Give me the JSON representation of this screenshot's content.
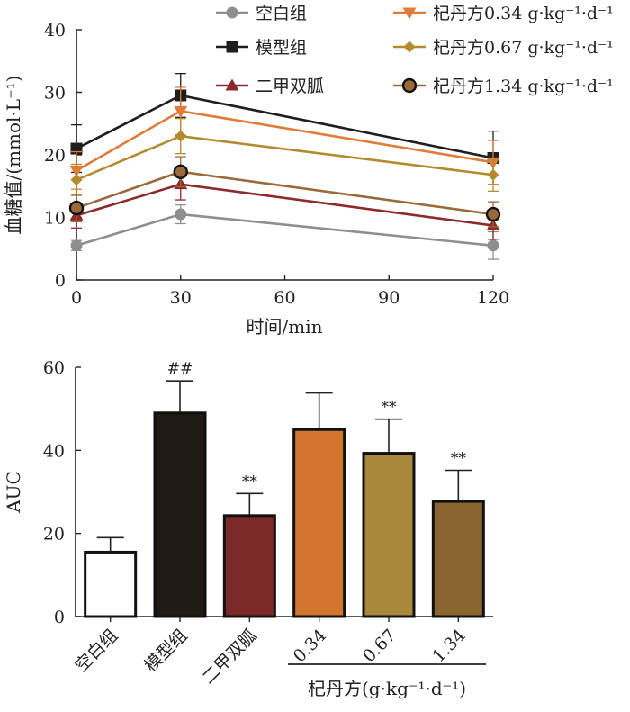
{
  "chart_data": [
    {
      "type": "line",
      "title": "",
      "xlabel": "时间/min",
      "ylabel": "血糖值/(mmol·L⁻¹)",
      "x": [
        0,
        30,
        120
      ],
      "xticks": [
        "0",
        "30",
        "60",
        "90",
        "120"
      ],
      "xlim": [
        0,
        120
      ],
      "yticks": [
        "0",
        "10",
        "20",
        "30",
        "40"
      ],
      "ylim": [
        0,
        40
      ],
      "legend_position": "top",
      "series": [
        {
          "name": "空白组",
          "color": "#8e8e8e",
          "marker": "circle",
          "values": [
            5.5,
            10.5,
            5.5
          ],
          "errors": [
            0.8,
            1.5,
            2.2
          ]
        },
        {
          "name": "模型组",
          "color": "#1e1e1e",
          "marker": "square",
          "values": [
            21.0,
            29.5,
            19.5
          ],
          "errors": [
            3.8,
            3.5,
            4.3
          ]
        },
        {
          "name": "二甲双胍",
          "color": "#8b2a2a",
          "marker": "triangle-up",
          "values": [
            10.3,
            15.3,
            8.7
          ],
          "errors": [
            2.0,
            2.5,
            2.2
          ]
        },
        {
          "name": "杞丹方0.34 g·kg⁻¹·d⁻¹",
          "color": "#e07b39",
          "marker": "triangle-down",
          "values": [
            17.5,
            27.0,
            18.8
          ],
          "errors": [
            3.0,
            3.8,
            3.5
          ]
        },
        {
          "name": "杞丹方0.67 g·kg⁻¹·d⁻¹",
          "color": "#b38b2e",
          "marker": "diamond",
          "values": [
            16.0,
            23.0,
            16.8
          ],
          "errors": [
            2.5,
            2.8,
            2.6
          ]
        },
        {
          "name": "杞丹方1.34 g·kg⁻¹·d⁻¹",
          "color": "#9a6a3a",
          "marker": "circle-dark",
          "values": [
            11.5,
            17.3,
            10.5
          ],
          "errors": [
            2.2,
            2.4,
            2.0
          ]
        }
      ]
    },
    {
      "type": "bar",
      "title": "",
      "xlabel": "杞丹方(g·kg⁻¹·d⁻¹)",
      "ylabel": "AUC",
      "ylim": [
        0,
        60
      ],
      "yticks": [
        "0",
        "20",
        "40",
        "60"
      ],
      "categories": [
        "空白组",
        "模型组",
        "二甲双胍",
        "0.34",
        "0.67",
        "1.34"
      ],
      "values": [
        15.5,
        49.0,
        24.3,
        45.0,
        39.3,
        27.7
      ],
      "errors": [
        3.5,
        7.7,
        5.3,
        8.8,
        8.2,
        7.5
      ],
      "colors": [
        "#ffffff",
        "#1e1a14",
        "#7b2828",
        "#d2752f",
        "#a8883a",
        "#8b6530"
      ],
      "significance": [
        "",
        "##",
        "**",
        "",
        "**",
        "**"
      ]
    }
  ]
}
